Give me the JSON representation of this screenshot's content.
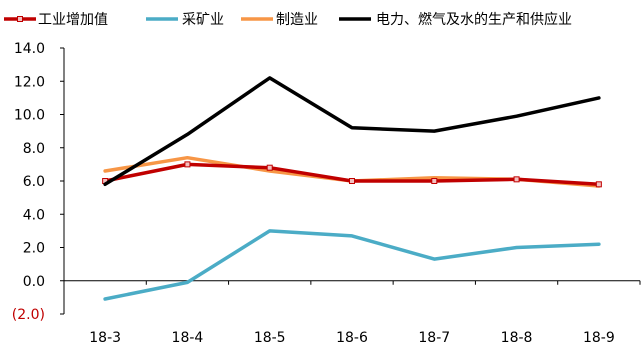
{
  "chart_data": {
    "type": "line",
    "title": "",
    "xlabel": "",
    "ylabel": "",
    "categories": [
      "18-3",
      "18-4",
      "18-5",
      "18-6",
      "18-7",
      "18-8",
      "18-9"
    ],
    "ylim": [
      -2.0,
      14.0
    ],
    "yticks": [
      {
        "value": -2.0,
        "label": "(2.0)"
      },
      {
        "value": 0.0,
        "label": "0.0"
      },
      {
        "value": 2.0,
        "label": "2.0"
      },
      {
        "value": 4.0,
        "label": "4.0"
      },
      {
        "value": 6.0,
        "label": "6.0"
      },
      {
        "value": 8.0,
        "label": "8.0"
      },
      {
        "value": 10.0,
        "label": "10.0"
      },
      {
        "value": 12.0,
        "label": "12.0"
      },
      {
        "value": 14.0,
        "label": "14.0"
      }
    ],
    "grid": false,
    "legend": "top",
    "series": [
      {
        "name": "工业增加值",
        "color": "#c00000",
        "markers": true,
        "values": [
          6.0,
          7.0,
          6.8,
          6.0,
          6.0,
          6.1,
          5.8
        ]
      },
      {
        "name": "采矿业",
        "color": "#4bacc6",
        "markers": false,
        "values": [
          -1.1,
          -0.1,
          3.0,
          2.7,
          1.3,
          2.0,
          2.2
        ]
      },
      {
        "name": "制造业",
        "color": "#f79646",
        "markers": false,
        "values": [
          6.6,
          7.4,
          6.6,
          6.0,
          6.2,
          6.1,
          5.7
        ]
      },
      {
        "name": "电力、燃气及水的生产和供应业",
        "color": "#000000",
        "markers": false,
        "values": [
          5.8,
          8.8,
          12.2,
          9.2,
          9.0,
          9.9,
          11.0
        ]
      }
    ]
  }
}
